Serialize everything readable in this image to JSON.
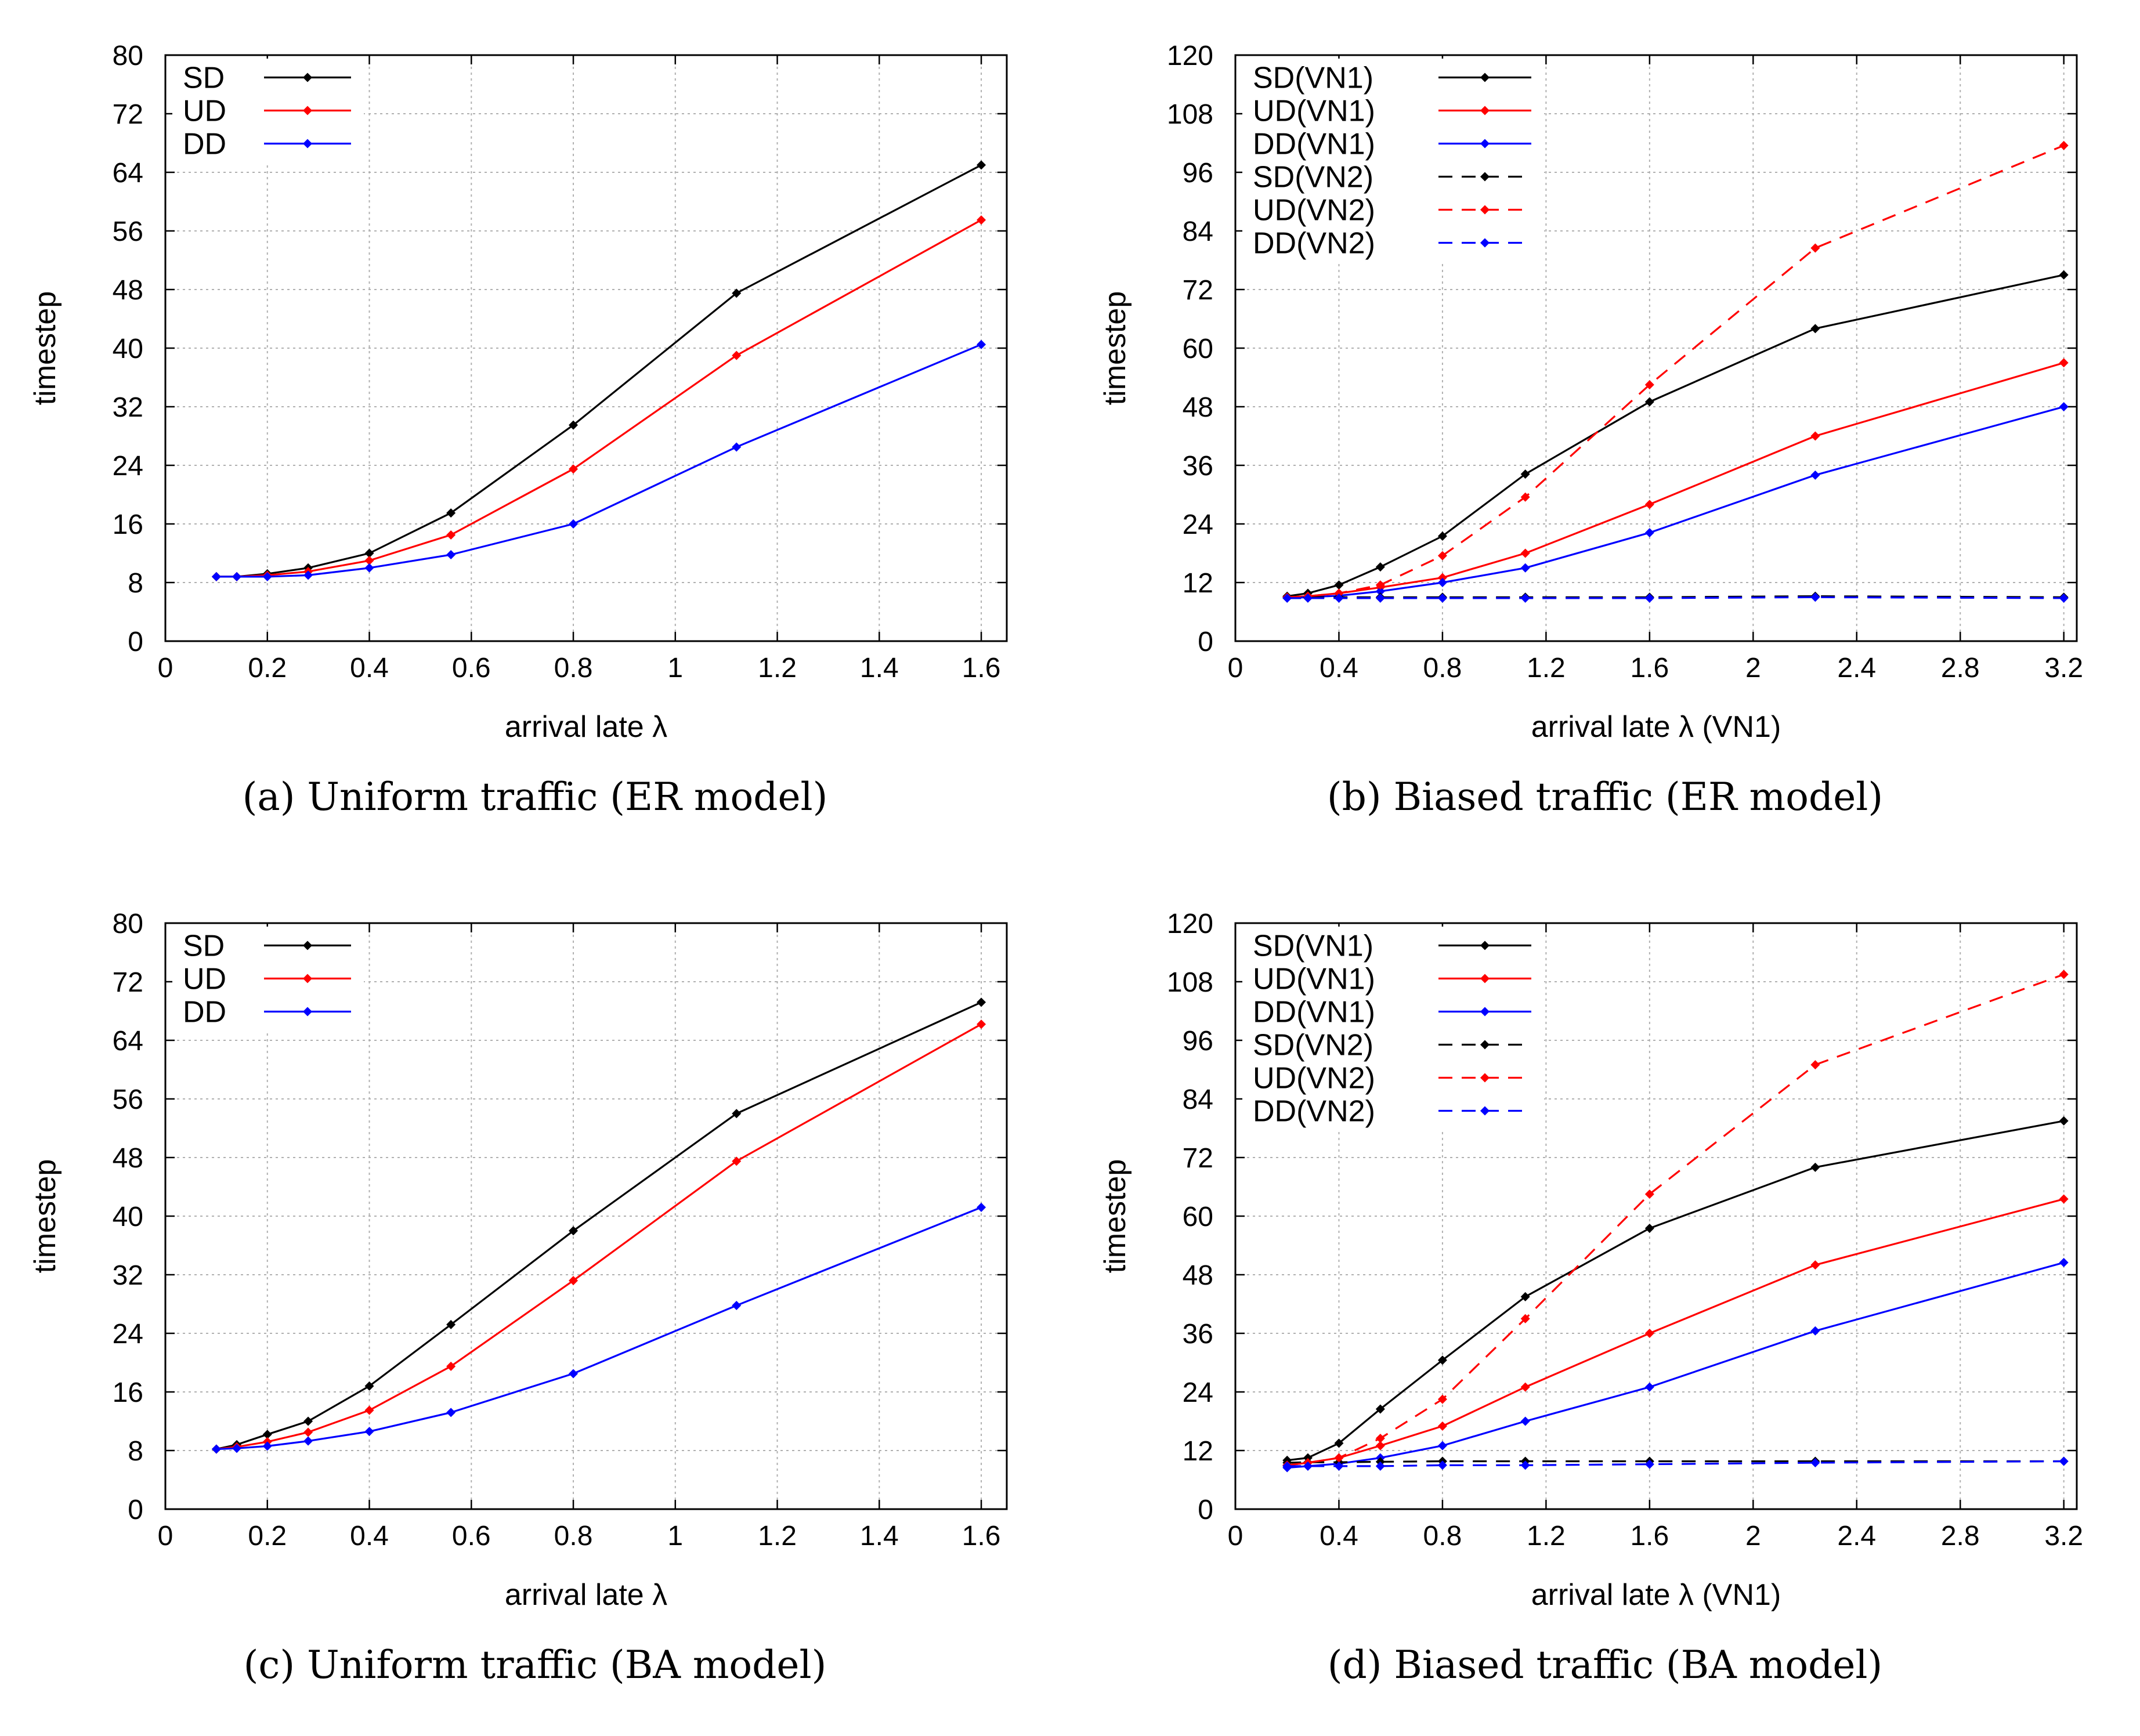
{
  "figure": {
    "panels": [
      {
        "id": "a",
        "caption": "(a)  Uniform traffic (ER model)"
      },
      {
        "id": "b",
        "caption": "(b)  Biased traffic (ER model)"
      },
      {
        "id": "c",
        "caption": "(c)  Uniform traffic (BA model)"
      },
      {
        "id": "d",
        "caption": "(d)  Biased traffic (BA model)"
      }
    ]
  },
  "colors": {
    "SD": "#000000",
    "UD": "#ff0000",
    "DD": "#0000ff",
    "grid": "#b0b0b0"
  },
  "chart_data": [
    {
      "type": "line",
      "panel": "a",
      "title": "",
      "xlabel": "arrival late λ",
      "ylabel": "timestep",
      "xlim": [
        0,
        1.65
      ],
      "ylim": [
        0,
        80
      ],
      "xticks": [
        0,
        0.2,
        0.4,
        0.6,
        0.8,
        1,
        1.2,
        1.4,
        1.6
      ],
      "xtick_labels": [
        "0",
        "0.2",
        "0.4",
        "0.6",
        "0.8",
        "1",
        "1.2",
        "1.4",
        "1.6"
      ],
      "yticks": [
        0,
        8,
        16,
        24,
        32,
        40,
        48,
        56,
        64,
        72,
        80
      ],
      "ytick_labels": [
        "0",
        "8",
        "16",
        "24",
        "32",
        "40",
        "48",
        "56",
        "64",
        "72",
        "80"
      ],
      "grid": true,
      "legend": "top-left",
      "series": [
        {
          "name": "SD",
          "color": "#000000",
          "dash": "solid",
          "x": [
            0.1,
            0.14,
            0.2,
            0.28,
            0.4,
            0.56,
            0.8,
            1.12,
            1.6
          ],
          "y": [
            8.8,
            8.8,
            9.2,
            10,
            12,
            17.5,
            29.5,
            47.5,
            65
          ]
        },
        {
          "name": "UD",
          "color": "#ff0000",
          "dash": "solid",
          "x": [
            0.1,
            0.14,
            0.2,
            0.28,
            0.4,
            0.56,
            0.8,
            1.12,
            1.6
          ],
          "y": [
            8.8,
            8.8,
            9,
            9.5,
            11,
            14.5,
            23.5,
            39,
            57.5
          ]
        },
        {
          "name": "DD",
          "color": "#0000ff",
          "dash": "solid",
          "x": [
            0.1,
            0.14,
            0.2,
            0.28,
            0.4,
            0.56,
            0.8,
            1.12,
            1.6
          ],
          "y": [
            8.8,
            8.8,
            8.8,
            9,
            10,
            11.8,
            16,
            26.5,
            40.5
          ]
        }
      ]
    },
    {
      "type": "line",
      "panel": "b",
      "title": "",
      "xlabel": "arrival late λ (VN1)",
      "ylabel": "timestep",
      "xlim": [
        0,
        3.25
      ],
      "ylim": [
        0,
        120
      ],
      "xticks": [
        0,
        0.4,
        0.8,
        1.2,
        1.6,
        2,
        2.4,
        2.8,
        3.2
      ],
      "xtick_labels": [
        "0",
        "0.4",
        "0.8",
        "1.2",
        "1.6",
        "2",
        "2.4",
        "2.8",
        "3.2"
      ],
      "yticks": [
        0,
        12,
        24,
        36,
        48,
        60,
        72,
        84,
        96,
        108,
        120
      ],
      "ytick_labels": [
        "0",
        "12",
        "24",
        "36",
        "48",
        "60",
        "72",
        "84",
        "96",
        "108",
        "120"
      ],
      "grid": true,
      "legend": "top-left",
      "series": [
        {
          "name": "SD(VN1)",
          "color": "#000000",
          "dash": "solid",
          "x": [
            0.2,
            0.28,
            0.4,
            0.56,
            0.8,
            1.12,
            1.6,
            2.24,
            3.2
          ],
          "y": [
            9.2,
            9.8,
            11.5,
            15.2,
            21.5,
            34.2,
            49,
            64,
            75
          ]
        },
        {
          "name": "UD(VN1)",
          "color": "#ff0000",
          "dash": "solid",
          "x": [
            0.2,
            0.28,
            0.4,
            0.56,
            0.8,
            1.12,
            1.6,
            2.24,
            3.2
          ],
          "y": [
            9,
            9.2,
            9.8,
            11,
            13,
            18,
            28,
            42,
            57
          ]
        },
        {
          "name": "DD(VN1)",
          "color": "#0000ff",
          "dash": "solid",
          "x": [
            0.2,
            0.28,
            0.4,
            0.56,
            0.8,
            1.12,
            1.6,
            2.24,
            3.2
          ],
          "y": [
            8.8,
            9,
            9.3,
            10.2,
            12,
            15,
            22.2,
            34,
            48
          ]
        },
        {
          "name": "SD(VN2)",
          "color": "#000000",
          "dash": "dashed",
          "x": [
            0.2,
            0.28,
            0.4,
            0.56,
            0.8,
            1.12,
            1.6,
            2.24,
            3.2
          ],
          "y": [
            9,
            9,
            9,
            9,
            9,
            9,
            9,
            9.2,
            9
          ]
        },
        {
          "name": "UD(VN2)",
          "color": "#ff0000",
          "dash": "dashed",
          "x": [
            0.2,
            0.28,
            0.4,
            0.56,
            0.8,
            1.12,
            1.6,
            2.24,
            3.2
          ],
          "y": [
            9,
            9.2,
            9.8,
            11.5,
            17.5,
            29.5,
            52.5,
            80.5,
            101.5
          ]
        },
        {
          "name": "DD(VN2)",
          "color": "#0000ff",
          "dash": "dashed",
          "x": [
            0.2,
            0.28,
            0.4,
            0.56,
            0.8,
            1.12,
            1.6,
            2.24,
            3.2
          ],
          "y": [
            8.8,
            8.8,
            8.8,
            8.8,
            8.8,
            8.8,
            8.8,
            9,
            8.8
          ]
        }
      ]
    },
    {
      "type": "line",
      "panel": "c",
      "title": "",
      "xlabel": "arrival late λ",
      "ylabel": "timestep",
      "xlim": [
        0,
        1.65
      ],
      "ylim": [
        0,
        80
      ],
      "xticks": [
        0,
        0.2,
        0.4,
        0.6,
        0.8,
        1,
        1.2,
        1.4,
        1.6
      ],
      "xtick_labels": [
        "0",
        "0.2",
        "0.4",
        "0.6",
        "0.8",
        "1",
        "1.2",
        "1.4",
        "1.6"
      ],
      "yticks": [
        0,
        8,
        16,
        24,
        32,
        40,
        48,
        56,
        64,
        72,
        80
      ],
      "ytick_labels": [
        "0",
        "8",
        "16",
        "24",
        "32",
        "40",
        "48",
        "56",
        "64",
        "72",
        "80"
      ],
      "grid": true,
      "legend": "top-left",
      "series": [
        {
          "name": "SD",
          "color": "#000000",
          "dash": "solid",
          "x": [
            0.1,
            0.14,
            0.2,
            0.28,
            0.4,
            0.56,
            0.8,
            1.12,
            1.6
          ],
          "y": [
            8.2,
            8.8,
            10.2,
            12,
            16.8,
            25.2,
            38,
            54,
            69.2
          ]
        },
        {
          "name": "UD",
          "color": "#ff0000",
          "dash": "solid",
          "x": [
            0.1,
            0.14,
            0.2,
            0.28,
            0.4,
            0.56,
            0.8,
            1.12,
            1.6
          ],
          "y": [
            8.2,
            8.5,
            9.2,
            10.5,
            13.5,
            19.5,
            31.2,
            47.5,
            66.2
          ]
        },
        {
          "name": "DD",
          "color": "#0000ff",
          "dash": "solid",
          "x": [
            0.1,
            0.14,
            0.2,
            0.28,
            0.4,
            0.56,
            0.8,
            1.12,
            1.6
          ],
          "y": [
            8.2,
            8.3,
            8.6,
            9.3,
            10.6,
            13.2,
            18.5,
            27.8,
            41.2
          ]
        }
      ]
    },
    {
      "type": "line",
      "panel": "d",
      "title": "",
      "xlabel": "arrival late λ (VN1)",
      "ylabel": "timestep",
      "xlim": [
        0,
        3.25
      ],
      "ylim": [
        0,
        120
      ],
      "xticks": [
        0,
        0.4,
        0.8,
        1.2,
        1.6,
        2,
        2.4,
        2.8,
        3.2
      ],
      "xtick_labels": [
        "0",
        "0.4",
        "0.8",
        "1.2",
        "1.6",
        "2",
        "2.4",
        "2.8",
        "3.2"
      ],
      "yticks": [
        0,
        12,
        24,
        36,
        48,
        60,
        72,
        84,
        96,
        108,
        120
      ],
      "ytick_labels": [
        "0",
        "12",
        "24",
        "36",
        "48",
        "60",
        "72",
        "84",
        "96",
        "108",
        "120"
      ],
      "grid": true,
      "legend": "top-left",
      "series": [
        {
          "name": "SD(VN1)",
          "color": "#000000",
          "dash": "solid",
          "x": [
            0.2,
            0.28,
            0.4,
            0.56,
            0.8,
            1.12,
            1.6,
            2.24,
            3.2
          ],
          "y": [
            10,
            10.5,
            13.5,
            20.5,
            30.5,
            43.5,
            57.5,
            70,
            79.5
          ]
        },
        {
          "name": "UD(VN1)",
          "color": "#ff0000",
          "dash": "solid",
          "x": [
            0.2,
            0.28,
            0.4,
            0.56,
            0.8,
            1.12,
            1.6,
            2.24,
            3.2
          ],
          "y": [
            9,
            9.5,
            10.5,
            13,
            17,
            25,
            36,
            50,
            63.5
          ]
        },
        {
          "name": "DD(VN1)",
          "color": "#0000ff",
          "dash": "solid",
          "x": [
            0.2,
            0.28,
            0.4,
            0.56,
            0.8,
            1.12,
            1.6,
            2.24,
            3.2
          ],
          "y": [
            8.5,
            8.8,
            9.3,
            10.5,
            13,
            18,
            25,
            36.5,
            50.5
          ]
        },
        {
          "name": "SD(VN2)",
          "color": "#000000",
          "dash": "dashed",
          "x": [
            0.2,
            0.28,
            0.4,
            0.56,
            0.8,
            1.12,
            1.6,
            2.24,
            3.2
          ],
          "y": [
            9.5,
            9.6,
            9.6,
            9.7,
            9.8,
            9.8,
            9.8,
            9.8,
            9.8
          ]
        },
        {
          "name": "UD(VN2)",
          "color": "#ff0000",
          "dash": "dashed",
          "x": [
            0.2,
            0.28,
            0.4,
            0.56,
            0.8,
            1.12,
            1.6,
            2.24,
            3.2
          ],
          "y": [
            9,
            9.5,
            10.5,
            14.5,
            22.5,
            39,
            64.5,
            91,
            109.5
          ]
        },
        {
          "name": "DD(VN2)",
          "color": "#0000ff",
          "dash": "dashed",
          "x": [
            0.2,
            0.28,
            0.4,
            0.56,
            0.8,
            1.12,
            1.6,
            2.24,
            3.2
          ],
          "y": [
            8.8,
            8.8,
            8.8,
            8.8,
            9,
            9,
            9.2,
            9.5,
            9.8
          ]
        }
      ]
    }
  ]
}
